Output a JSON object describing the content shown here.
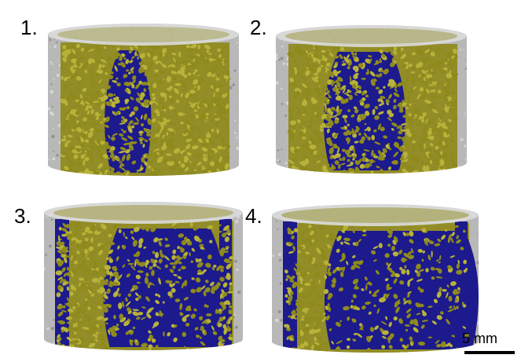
{
  "panels": [
    {
      "label": "1.",
      "blue_share": 0.15
    },
    {
      "label": "2.",
      "blue_share": 0.35
    },
    {
      "label": "3.",
      "blue_share": 0.55
    },
    {
      "label": "4.",
      "blue_share": 0.7
    }
  ],
  "scale_bar": {
    "label": "5 mm"
  },
  "colors": {
    "grain": "#8f8a1d",
    "grain_light": "#b8b23a",
    "fluid": "#1c1a8c",
    "matrix": "#b8b8b8",
    "matrix_light": "#dcdcdc",
    "matrix_dark": "#8a8a8a"
  }
}
